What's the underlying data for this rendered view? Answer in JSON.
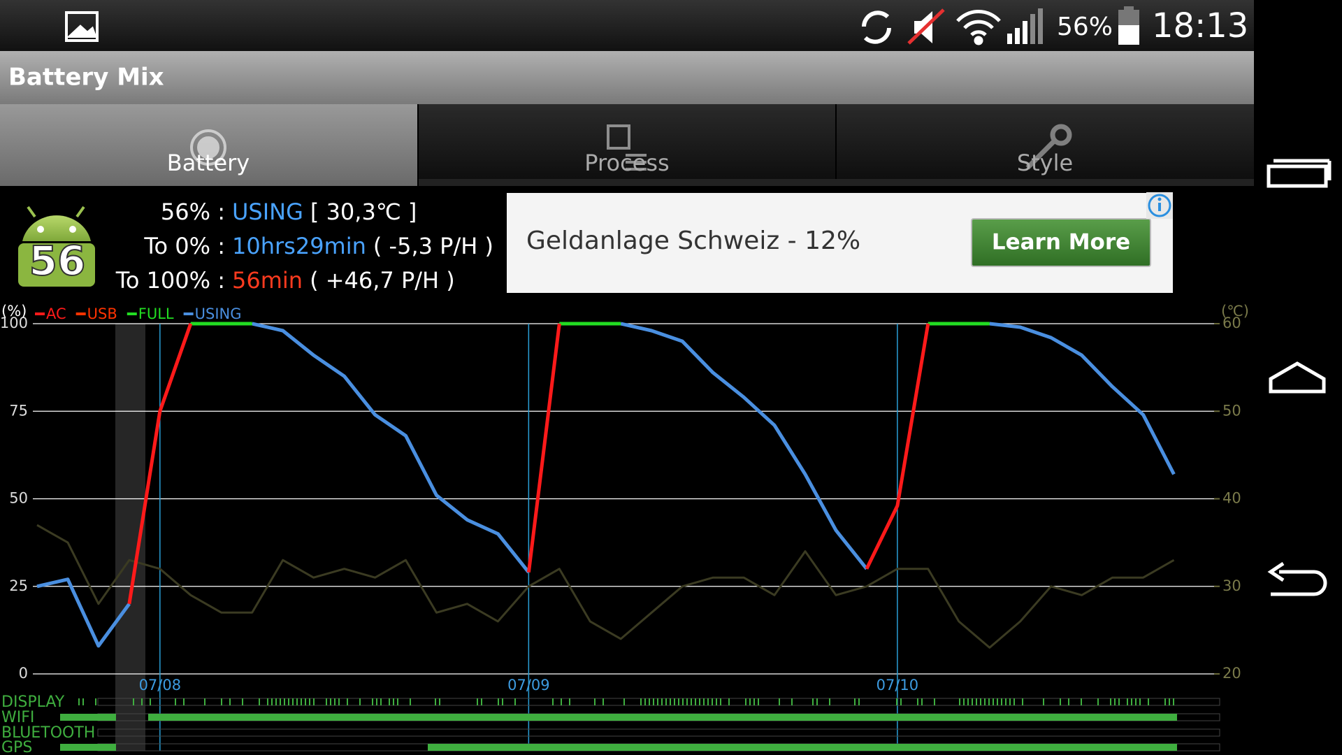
{
  "status_bar": {
    "battery": "56%",
    "time": "18:13"
  },
  "app_title": "Battery Mix",
  "tabs": [
    "Battery",
    "Process",
    "Style"
  ],
  "battery_badge": "56",
  "info": [
    {
      "label": "56% :",
      "value": "USING",
      "detail": "[ 30,3℃ ]",
      "color": "#4aa3ff"
    },
    {
      "label": "To 0% :",
      "value": "10hrs29min",
      "detail": "( -5,3 P/H )",
      "color": "#4aa3ff"
    },
    {
      "label": "To 100% :",
      "value": "56min",
      "detail": "( +46,7 P/H )",
      "color": "#ff3b1f"
    }
  ],
  "ad": {
    "text": "Geldanlage Schweiz - 12%",
    "button": "Learn More"
  },
  "chart_data": {
    "type": "line",
    "y_unit": "(%)",
    "y2_unit": "(℃)",
    "categories": [
      null,
      null,
      null,
      null,
      "07/08",
      null,
      null,
      null,
      null,
      null,
      null,
      null,
      null,
      null,
      null,
      null,
      "07/09",
      null,
      null,
      null,
      null,
      null,
      null,
      null,
      null,
      null,
      null,
      null,
      "07/10",
      null,
      null,
      null,
      null,
      null,
      null,
      null,
      null,
      null,
      null
    ],
    "series": [
      {
        "name": "AC",
        "color": "#ff1a1a",
        "values": [
          null,
          null,
          null,
          20,
          75,
          100,
          null,
          null,
          null,
          null,
          null,
          null,
          null,
          null,
          null,
          null,
          29,
          100,
          null,
          null,
          null,
          null,
          null,
          null,
          null,
          null,
          null,
          30,
          48,
          100,
          null,
          null,
          null,
          null,
          null,
          null,
          null,
          null,
          null
        ]
      },
      {
        "name": "USB",
        "color": "#ff3300",
        "values": [
          null,
          null,
          null,
          null,
          null,
          null,
          null,
          null,
          null,
          null,
          null,
          null,
          null,
          null,
          null,
          null,
          null,
          null,
          null,
          null,
          null,
          null,
          null,
          null,
          null,
          null,
          null,
          null,
          null,
          null,
          null,
          null,
          null,
          null,
          null,
          null,
          null,
          null,
          null
        ]
      },
      {
        "name": "FULL",
        "color": "#22dd22",
        "values": [
          null,
          null,
          null,
          null,
          null,
          100,
          100,
          100,
          null,
          null,
          null,
          null,
          null,
          null,
          null,
          null,
          null,
          100,
          100,
          100,
          null,
          null,
          null,
          null,
          null,
          null,
          null,
          null,
          null,
          100,
          100,
          100,
          null,
          null,
          null,
          null,
          null,
          null,
          null
        ]
      },
      {
        "name": "USING",
        "color": "#4a8fe0",
        "values": [
          25,
          27,
          8,
          20,
          null,
          null,
          null,
          100,
          98,
          91,
          85,
          74,
          68,
          51,
          44,
          40,
          29,
          null,
          null,
          100,
          98,
          95,
          86,
          79,
          71,
          57,
          41,
          30,
          null,
          null,
          null,
          100,
          99,
          96,
          91,
          82,
          74,
          57,
          null
        ]
      },
      {
        "color": "#3b3b22",
        "axis": "y2",
        "values": [
          37,
          35,
          28,
          33,
          32,
          29,
          27,
          27,
          33,
          31,
          32,
          31,
          33,
          27,
          28,
          26,
          30,
          32,
          26,
          24,
          27,
          30,
          31,
          31,
          29,
          34,
          29,
          30,
          32,
          32,
          26,
          23,
          26,
          30,
          29,
          31,
          31,
          33,
          null
        ]
      }
    ],
    "ylim": [
      0,
      100
    ],
    "yticks": [
      0,
      25,
      50,
      75,
      100
    ],
    "y2lim": [
      20,
      60
    ],
    "y2ticks": [
      20,
      30,
      40,
      50,
      60
    ],
    "grid": true
  },
  "activity_rows": [
    "DISPLAY",
    "WIFI",
    "BLUETOOTH",
    "GPS"
  ]
}
